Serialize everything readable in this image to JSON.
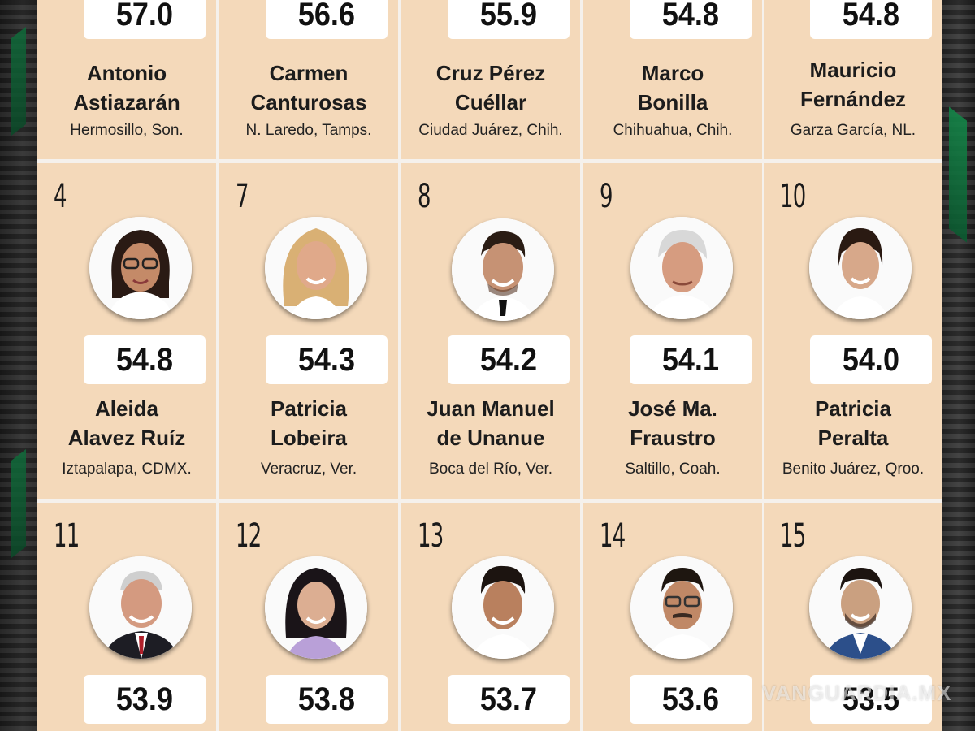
{
  "row_top": [
    {
      "score": "57.0",
      "name_1": "Antonio",
      "name_2": "Astiazarán",
      "place": "Hermosillo, Son."
    },
    {
      "score": "56.6",
      "name_1": "Carmen",
      "name_2": "Canturosas",
      "place": "N. Laredo, Tamps."
    },
    {
      "score": "55.9",
      "name_1": "Cruz Pérez",
      "name_2": "Cuéllar",
      "place": "Ciudad Juárez, Chih."
    },
    {
      "score": "54.8",
      "name_1": "Marco",
      "name_2": "Bonilla",
      "place": "Chihuahua, Chih."
    },
    {
      "score": "54.8",
      "name_1": "Mauricio",
      "name_2": "Fernández",
      "place": "Garza García, NL."
    }
  ],
  "row_mid": [
    {
      "rank": "4",
      "score": "54.8",
      "name_1": "Aleida",
      "name_2": "Alavez Ruíz",
      "place": "Iztapalapa, CDMX.",
      "photo": "woman-glasses-dark-hair"
    },
    {
      "rank": "7",
      "score": "54.3",
      "name_1": "Patricia",
      "name_2": "Lobeira",
      "place": "Veracruz, Ver.",
      "photo": "woman-blonde-hair"
    },
    {
      "rank": "8",
      "score": "54.2",
      "name_1": "Juan Manuel",
      "name_2": "de Unanue",
      "place": "Boca del Río, Ver.",
      "photo": "man-dark-hair-tie"
    },
    {
      "rank": "9",
      "score": "54.1",
      "name_1": "José Ma.",
      "name_2": "Fraustro",
      "place": "Saltillo, Coah.",
      "photo": "older-man-gray-hair"
    },
    {
      "rank": "10",
      "score": "54.0",
      "name_1": "Patricia",
      "name_2": "Peralta",
      "place": "Benito Juárez, Qroo.",
      "photo": "woman-dark-hair-tied"
    }
  ],
  "row_bottom": [
    {
      "rank": "11",
      "score": "53.9",
      "photo": "older-man-suit-red-tie"
    },
    {
      "rank": "12",
      "score": "53.8",
      "photo": "woman-dark-hair-lilac"
    },
    {
      "rank": "13",
      "score": "53.7",
      "photo": "young-man-dark-hair"
    },
    {
      "rank": "14",
      "score": "53.6",
      "photo": "man-glasses-mustache"
    },
    {
      "rank": "15",
      "score": "53.5",
      "photo": "man-beard-blue-jacket"
    }
  ],
  "watermark": "VANGUARDIA.MX",
  "colors": {
    "card": "#f4d9ba",
    "grid_line": "#f5f1ec",
    "score_box": "#ffffff",
    "accent_green": "#138447"
  }
}
